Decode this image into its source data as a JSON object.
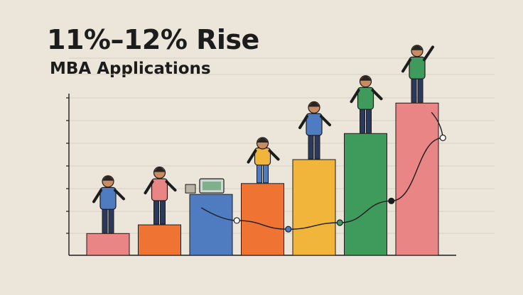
{
  "title": "11%–12% Rise",
  "subtitle": "MBA Applications",
  "chart_data": {
    "type": "bar",
    "title": "11%–12% Rise",
    "subtitle": "MBA Applications",
    "xlabel": "",
    "ylabel": "",
    "categories": [
      "",
      "",
      "",
      "",
      "",
      "",
      ""
    ],
    "values": [
      1,
      1.4,
      2.8,
      3.3,
      4.4,
      5.6,
      7.0
    ],
    "ylim": [
      0,
      7.5
    ],
    "grid": true,
    "legend": "none",
    "bar_colors": [
      "#e98585",
      "#ef7434",
      "#4f7cc0",
      "#ef7434",
      "#f2b53c",
      "#3f9b5c",
      "#e98585"
    ],
    "overlay_line": {
      "type": "line",
      "color": "#1c1c1c",
      "x_positions": [
        3.5,
        4.5,
        5.5,
        6.5,
        7.5
      ],
      "values": [
        1.6,
        1.2,
        1.5,
        2.5,
        5.4
      ],
      "marker_fill": [
        "#ffffff",
        "#4f7cc0",
        "#3f9b5c",
        "#1c1c1c",
        "#ffffff"
      ]
    }
  },
  "figures": [
    {
      "name": "woman-in-blue-suit-figure",
      "bar": 0,
      "color": "#4f7cc0"
    },
    {
      "name": "person-with-laptop-figure",
      "bar": 1,
      "color": "#e98585"
    },
    {
      "name": "laptop-device",
      "bar": 2,
      "color": "#4f7cc0"
    },
    {
      "name": "seated-person-figure",
      "bar": 3,
      "color": "#f2b53c"
    },
    {
      "name": "person-with-briefcase-figure",
      "bar": 4,
      "color": "#4f7cc0"
    },
    {
      "name": "person-with-folder-figure",
      "bar": 5,
      "color": "#3f9b5c"
    },
    {
      "name": "celebrating-person-figure",
      "bar": 6,
      "color": "#3f9b5c"
    }
  ]
}
